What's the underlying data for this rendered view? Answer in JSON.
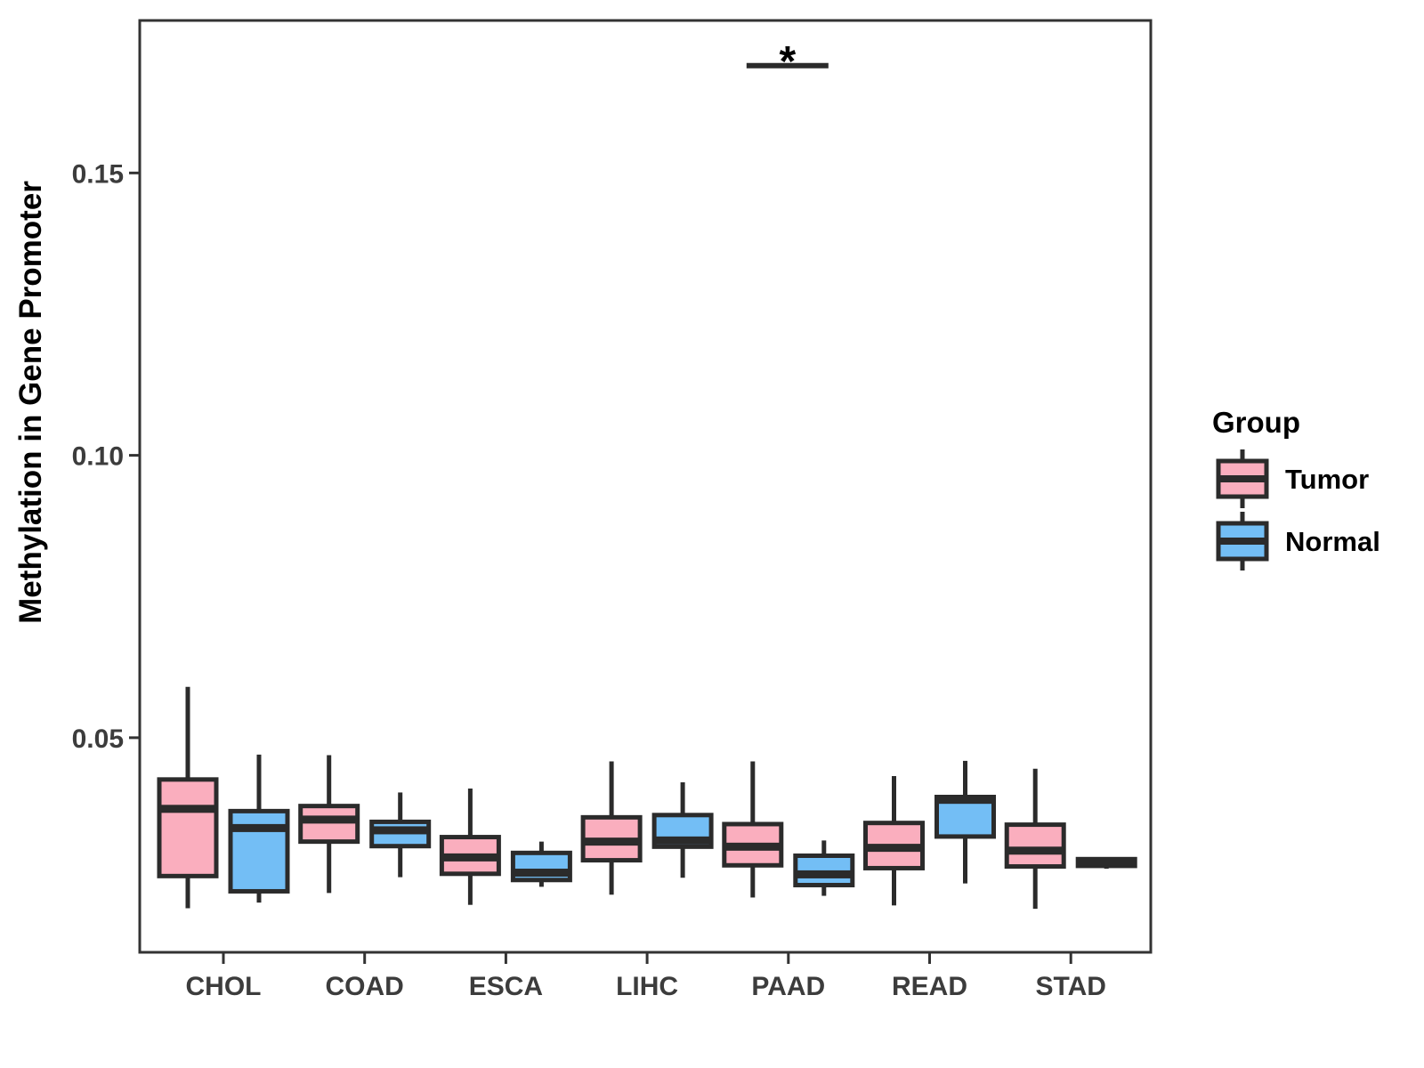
{
  "colors": {
    "tumor_fill": "#FAAEBE",
    "normal_fill": "#73BEF5",
    "box_stroke": "#2B2B2B",
    "panel_border": "#333333",
    "tick_text": "#3C3C3C",
    "title_text": "#000000"
  },
  "chart_data": {
    "type": "grouped_boxplot",
    "title": "",
    "ylabel": "Methylation in Gene Promoter",
    "xlabel": "",
    "categories": [
      "CHOL",
      "COAD",
      "ESCA",
      "LIHC",
      "PAAD",
      "READ",
      "STAD"
    ],
    "groups": [
      "Tumor",
      "Normal"
    ],
    "ylim": [
      0.012,
      0.177
    ],
    "y_ticks": [
      0.05,
      0.1,
      0.15
    ],
    "grid": "off",
    "legend": {
      "title": "Group",
      "position": "right"
    },
    "series": [
      {
        "name": "Tumor",
        "color_key": "tumor_fill",
        "boxes": [
          {
            "category": "CHOL",
            "low": 0.0198,
            "q1": 0.0255,
            "median": 0.0374,
            "q3": 0.0426,
            "high": 0.059
          },
          {
            "category": "COAD",
            "low": 0.0225,
            "q1": 0.0316,
            "median": 0.0355,
            "q3": 0.0379,
            "high": 0.0469
          },
          {
            "category": "ESCA",
            "low": 0.0204,
            "q1": 0.0259,
            "median": 0.0288,
            "q3": 0.0324,
            "high": 0.041
          },
          {
            "category": "LIHC",
            "low": 0.0222,
            "q1": 0.0283,
            "median": 0.0316,
            "q3": 0.0359,
            "high": 0.0458
          },
          {
            "category": "PAAD",
            "low": 0.0217,
            "q1": 0.0274,
            "median": 0.0307,
            "q3": 0.0347,
            "high": 0.0458
          },
          {
            "category": "READ",
            "low": 0.0203,
            "q1": 0.0269,
            "median": 0.0305,
            "q3": 0.0349,
            "high": 0.0432
          },
          {
            "category": "STAD",
            "low": 0.0197,
            "q1": 0.0272,
            "median": 0.03,
            "q3": 0.0346,
            "high": 0.0445
          }
        ]
      },
      {
        "name": "Normal",
        "color_key": "normal_fill",
        "boxes": [
          {
            "category": "CHOL",
            "low": 0.0208,
            "q1": 0.0228,
            "median": 0.034,
            "q3": 0.037,
            "high": 0.047
          },
          {
            "category": "COAD",
            "low": 0.0253,
            "q1": 0.0308,
            "median": 0.0336,
            "q3": 0.0351,
            "high": 0.0403
          },
          {
            "category": "ESCA",
            "low": 0.0236,
            "q1": 0.0248,
            "median": 0.0261,
            "q3": 0.0296,
            "high": 0.0316
          },
          {
            "category": "LIHC",
            "low": 0.0252,
            "q1": 0.0307,
            "median": 0.0318,
            "q3": 0.0363,
            "high": 0.0421
          },
          {
            "category": "PAAD",
            "low": 0.022,
            "q1": 0.0239,
            "median": 0.0258,
            "q3": 0.0291,
            "high": 0.0318
          },
          {
            "category": "READ",
            "low": 0.0242,
            "q1": 0.0325,
            "median": 0.039,
            "q3": 0.0395,
            "high": 0.0459
          },
          {
            "category": "STAD",
            "low": 0.0268,
            "q1": 0.0273,
            "median": 0.028,
            "q3": 0.0285,
            "high": 0.0288
          }
        ]
      }
    ],
    "annotation": {
      "label": "*",
      "category": "PAAD",
      "between_groups": [
        "Tumor",
        "Normal"
      ],
      "y": 0.169
    }
  }
}
